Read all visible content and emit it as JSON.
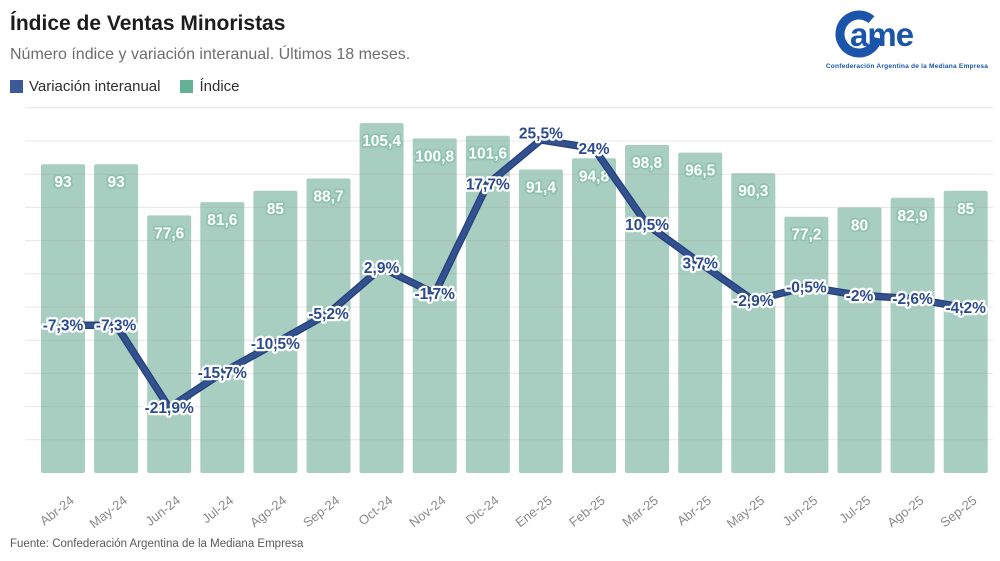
{
  "header": {
    "title": "Índice de Ventas Minoristas",
    "subtitle": "Número índice y variación interanual. Últimos 18 meses.",
    "legend": [
      {
        "label": "Variación interanual",
        "color": "#3c5a97"
      },
      {
        "label": "Índice",
        "color": "#63b295"
      }
    ]
  },
  "logo": {
    "letters": "ame",
    "tagline": "Confederación Argentina de la Mediana Empresa",
    "color": "#1b55ab"
  },
  "footer": {
    "source": "Fuente: Confederación Argentina de la Mediana Empresa"
  },
  "chart_data": {
    "type": "bar+line combo",
    "title": "Índice de Ventas Minoristas",
    "subtitle": "Número índice y variación interanual. Últimos 18 meses.",
    "categories": [
      "Abr-24",
      "May-24",
      "Jun-24",
      "Jul-24",
      "Ago-24",
      "Sep-24",
      "Oct-24",
      "Nov-24",
      "Dic-24",
      "Ene-25",
      "Feb-25",
      "Mar-25",
      "Abr-25",
      "May-25",
      "Jun-25",
      "Jul-25",
      "Ago-25",
      "Sep-25"
    ],
    "series": [
      {
        "name": "Índice",
        "type": "bar",
        "color": "#a7cec0",
        "values": [
          93,
          93,
          77.6,
          81.6,
          85,
          88.7,
          105.4,
          100.8,
          101.6,
          91.4,
          94.8,
          98.8,
          96.5,
          90.3,
          77.2,
          80,
          82.9,
          85
        ],
        "display_labels": [
          "93",
          "93",
          "77,6",
          "81,6",
          "85",
          "88,7",
          "105,4",
          "100,8",
          "101,6",
          "91,4",
          "94,8",
          "98,8",
          "96,5",
          "90,3",
          "77,2",
          "80",
          "82,9",
          "85"
        ]
      },
      {
        "name": "Variación interanual",
        "type": "line",
        "color": "#33518e",
        "outline_color": "#24407a",
        "values": [
          -7.3,
          -7.3,
          -21.9,
          -15.7,
          -10.5,
          -5.2,
          2.9,
          -1.7,
          17.7,
          25.5,
          24,
          10.5,
          3.7,
          -2.9,
          -0.5,
          -2,
          -2.6,
          -4.2
        ],
        "display_labels": [
          "-7,3%",
          "-7,3%",
          "-21,9%",
          "-15,7%",
          "-10,5%",
          "-5,2%",
          "2,9%",
          "-1,7%",
          "17,7%",
          "25,5%",
          "24%",
          "10,5%",
          "3,7%",
          "-2,9%",
          "-0,5%",
          "-2%",
          "-2,6%",
          "-4,2%"
        ]
      }
    ],
    "bar_axis": {
      "min": 0,
      "max": 112,
      "grid_step": 10,
      "grid": true
    },
    "line_axis": {
      "min": -25,
      "max": 30,
      "unit": "%"
    },
    "legend_position": "top-left",
    "label_style": {
      "bar_label_fill": "#ffffff",
      "bar_label_outline": "#8fc2b0",
      "line_label_fill": "#2c4b8e",
      "line_label_outline": "#ffffff",
      "axis_label_color": "#8a8a8a",
      "gridline_color": "rgba(170,150,150,0.25)"
    }
  }
}
